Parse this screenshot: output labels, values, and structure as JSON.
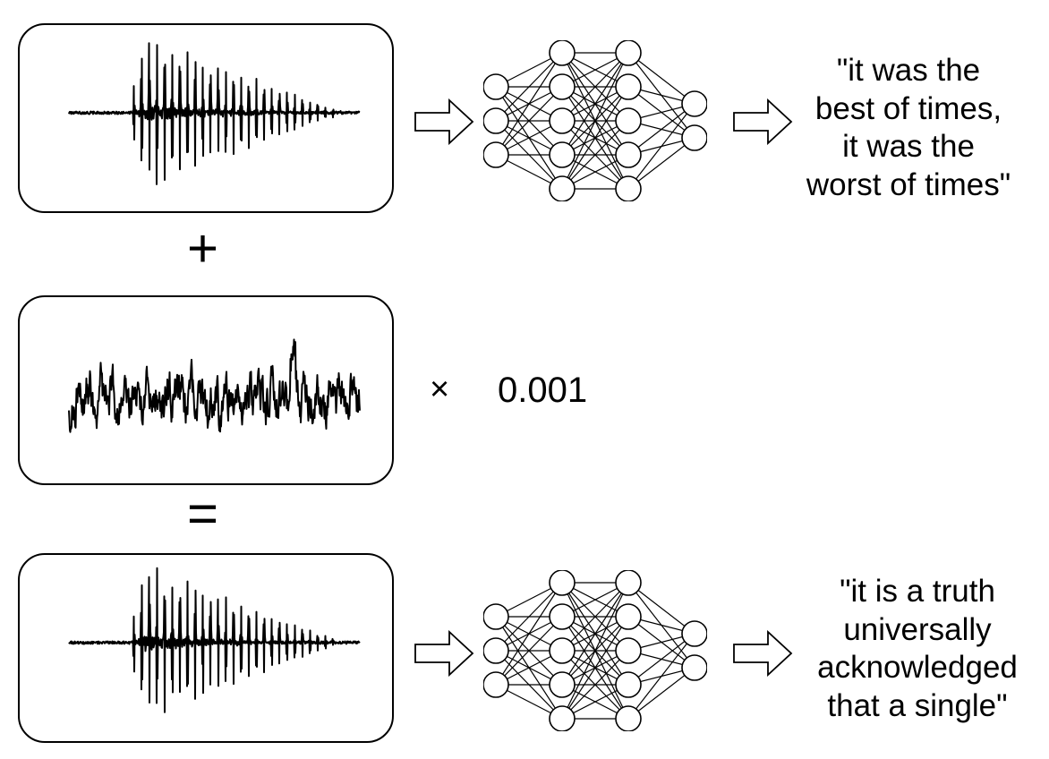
{
  "rows": [
    {
      "caption": "\"it was the\nbest of times,\nit was the\nworst of times\""
    },
    {
      "caption": "\"it is a truth\nuniversally\nacknowledged\nthat a single\""
    }
  ],
  "operators": {
    "plus": "+",
    "equals": "=",
    "times": "×",
    "scale": "0.001"
  },
  "network_layers": [
    3,
    5,
    5,
    2
  ]
}
